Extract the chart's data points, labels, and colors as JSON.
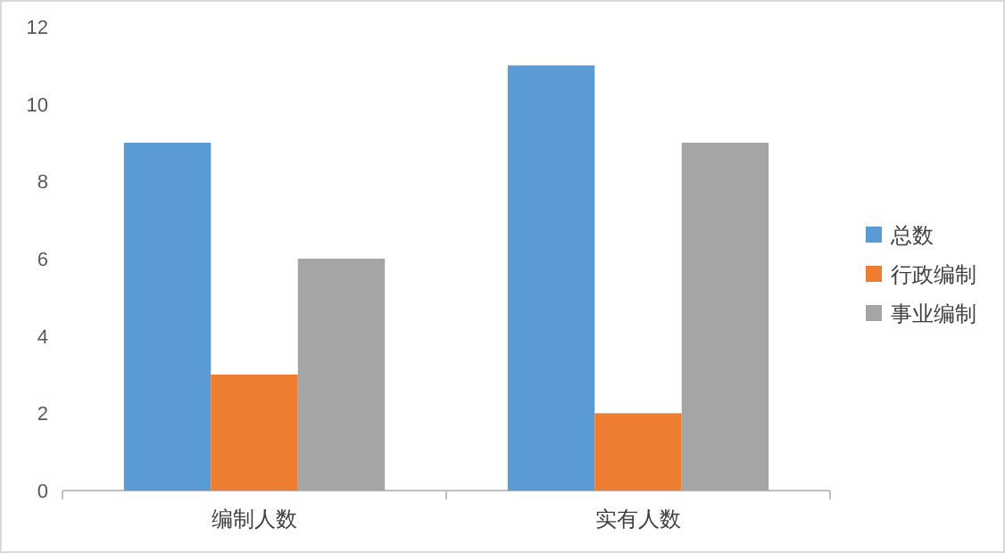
{
  "chart_data": {
    "type": "bar",
    "categories": [
      "编制人数",
      "实有人数"
    ],
    "series": [
      {
        "name": "总数",
        "color": "#5b9bd5",
        "values": [
          9,
          11
        ]
      },
      {
        "name": "行政编制",
        "color": "#ed7d31",
        "values": [
          3,
          2
        ]
      },
      {
        "name": "事业编制",
        "color": "#a5a5a5",
        "values": [
          6,
          9
        ]
      }
    ],
    "ylim": [
      0,
      12
    ],
    "yticks": [
      0,
      2,
      4,
      6,
      8,
      10,
      12
    ],
    "grid": false,
    "legend": "right"
  }
}
